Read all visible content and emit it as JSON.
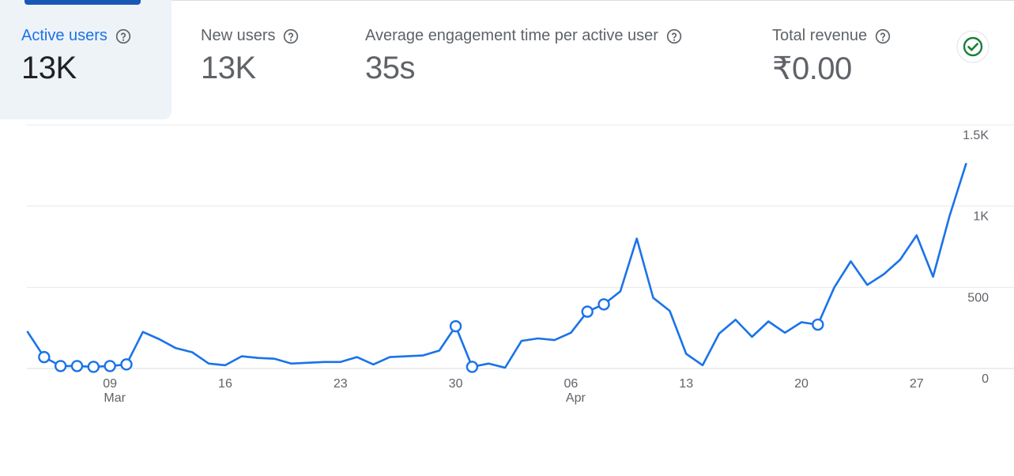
{
  "metrics": [
    {
      "label": "Active users",
      "value": "13K",
      "active": true
    },
    {
      "label": "New users",
      "value": "13K",
      "active": false
    },
    {
      "label": "Average engagement time per active user",
      "value": "35s",
      "active": false
    },
    {
      "label": "Total revenue",
      "value": "₹0.00",
      "active": false
    }
  ],
  "status_icon": "check-circle-icon",
  "colors": {
    "accent": "#1a73e8",
    "line": "#1a73e8",
    "active_tab_bg": "#eef3f8",
    "active_bar": "#1a56b7",
    "check": "#188038"
  },
  "chart_data": {
    "type": "line",
    "series": [
      {
        "x": [
          "2024-03-04",
          "2024-03-05",
          "2024-03-06",
          "2024-03-07",
          "2024-03-08",
          "2024-03-09",
          "2024-03-10",
          "2024-03-11",
          "2024-03-12",
          "2024-03-13",
          "2024-03-14",
          "2024-03-15",
          "2024-03-16",
          "2024-03-17",
          "2024-03-18",
          "2024-03-19",
          "2024-03-20",
          "2024-03-21",
          "2024-03-22",
          "2024-03-23",
          "2024-03-24",
          "2024-03-25",
          "2024-03-26",
          "2024-03-27",
          "2024-03-28",
          "2024-03-29",
          "2024-03-30",
          "2024-03-31",
          "2024-04-01",
          "2024-04-02",
          "2024-04-03",
          "2024-04-04",
          "2024-04-05",
          "2024-04-06",
          "2024-04-07",
          "2024-04-08",
          "2024-04-09",
          "2024-04-10",
          "2024-04-11",
          "2024-04-12",
          "2024-04-13",
          "2024-04-14",
          "2024-04-15",
          "2024-04-16",
          "2024-04-17",
          "2024-04-18",
          "2024-04-19",
          "2024-04-20",
          "2024-04-21",
          "2024-04-22",
          "2024-04-23",
          "2024-04-24",
          "2024-04-25",
          "2024-04-26",
          "2024-04-27",
          "2024-04-28",
          "2024-04-29",
          "2024-04-30"
        ],
        "y": [
          225,
          70,
          15,
          15,
          10,
          15,
          25,
          225,
          180,
          125,
          100,
          30,
          20,
          75,
          65,
          60,
          30,
          35,
          40,
          40,
          70,
          25,
          70,
          75,
          80,
          110,
          260,
          10,
          30,
          5,
          170,
          185,
          175,
          220,
          350,
          395,
          475,
          800,
          435,
          355,
          90,
          20,
          215,
          300,
          195,
          290,
          220,
          285,
          270,
          500,
          660,
          515,
          580,
          670,
          820,
          565,
          940,
          1260
        ],
        "highlighted": [
          false,
          true,
          true,
          true,
          true,
          true,
          true,
          false,
          false,
          false,
          false,
          false,
          false,
          false,
          false,
          false,
          false,
          false,
          false,
          false,
          false,
          false,
          false,
          false,
          false,
          false,
          true,
          true,
          false,
          false,
          false,
          false,
          false,
          false,
          true,
          true,
          false,
          false,
          false,
          false,
          false,
          false,
          false,
          false,
          false,
          false,
          false,
          false,
          true,
          false,
          false,
          false,
          false,
          false,
          false,
          false,
          false,
          false
        ]
      }
    ],
    "x_ticks": [
      {
        "date": "2024-03-09",
        "day": "09",
        "month": "Mar"
      },
      {
        "date": "2024-03-16",
        "day": "16",
        "month": ""
      },
      {
        "date": "2024-03-23",
        "day": "23",
        "month": ""
      },
      {
        "date": "2024-03-30",
        "day": "30",
        "month": ""
      },
      {
        "date": "2024-04-06",
        "day": "06",
        "month": "Apr"
      },
      {
        "date": "2024-04-13",
        "day": "13",
        "month": ""
      },
      {
        "date": "2024-04-20",
        "day": "20",
        "month": ""
      },
      {
        "date": "2024-04-27",
        "day": "27",
        "month": ""
      }
    ],
    "y_ticks": [
      0,
      500,
      1000,
      1500
    ],
    "y_tick_labels": [
      "0",
      "500",
      "1K",
      "1.5K"
    ],
    "ylim": [
      0,
      1500
    ],
    "y_axis_side": "right",
    "grid": true,
    "title": "",
    "xlabel": "",
    "ylabel": ""
  }
}
